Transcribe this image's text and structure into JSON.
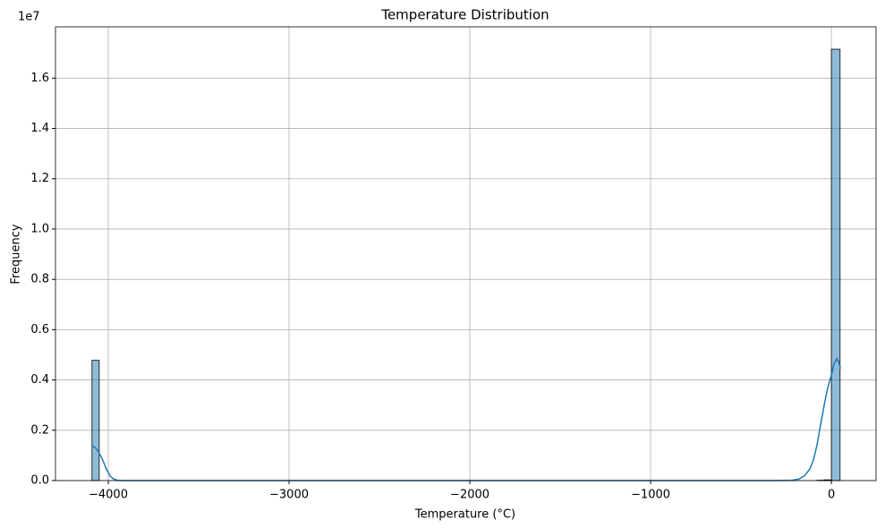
{
  "chart_data": {
    "type": "histogram",
    "title": "Temperature Distribution",
    "x_label": "Temperature (°C)",
    "y_label": "Frequency",
    "y_offset_label": "1e7",
    "bins": [
      -4090,
      -4050,
      -80,
      -40,
      0,
      48
    ],
    "counts": [
      4780000,
      0,
      15000,
      30000,
      17150000
    ],
    "color": "#1f77b4",
    "kde": {
      "color": "#1f77b4",
      "x": [
        -4090,
        -4070,
        -4050,
        -4030,
        -4010,
        -3990,
        -3970,
        -3950,
        -3920,
        -3880,
        -300,
        -220,
        -180,
        -150,
        -120,
        -100,
        -80,
        -60,
        -40,
        -20,
        0,
        15,
        30,
        42,
        50
      ],
      "values": [
        1380000,
        1300000,
        1100000,
        800000,
        450000,
        180000,
        60000,
        15000,
        2000,
        0,
        0,
        10000,
        60000,
        180000,
        450000,
        800000,
        1400000,
        2200000,
        3000000,
        3700000,
        4200000,
        4650000,
        4850000,
        4700000,
        4450000
      ]
    },
    "xlim": [
      -4292,
      247
    ],
    "ylim": [
      0,
      18040000
    ],
    "xticks": [
      {
        "value": -4000,
        "label": "−4000"
      },
      {
        "value": -3000,
        "label": "−3000"
      },
      {
        "value": -2000,
        "label": "−2000"
      },
      {
        "value": -1000,
        "label": "−1000"
      },
      0
    ],
    "yticks": [
      {
        "value": 0,
        "label": "0.0"
      },
      {
        "value": 2000000,
        "label": "0.2"
      },
      {
        "value": 4000000,
        "label": "0.4"
      },
      {
        "value": 6000000,
        "label": "0.6"
      },
      {
        "value": 8000000,
        "label": "0.8"
      },
      {
        "value": 10000000,
        "label": "1.0"
      },
      {
        "value": 12000000,
        "label": "1.2"
      },
      {
        "value": 14000000,
        "label": "1.4"
      },
      {
        "value": 16000000,
        "label": "1.6"
      }
    ],
    "grid": true
  }
}
